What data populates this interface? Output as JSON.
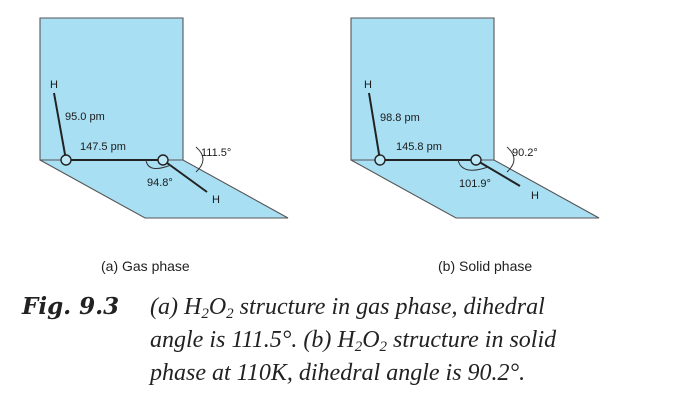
{
  "panels": [
    {
      "id": "gas",
      "h_top": "H",
      "h_bottom": "H",
      "oh_bond": "95.0 pm",
      "oo_bond": "147.5 pm",
      "dihedral": "111.5°",
      "bond_angle": "94.8°",
      "subcaption": "(a) Gas phase"
    },
    {
      "id": "solid",
      "h_top": "H",
      "h_bottom": "H",
      "oh_bond": "98.8 pm",
      "oo_bond": "145.8 pm",
      "dihedral": "90.2°",
      "bond_angle": "101.9°",
      "subcaption": "(b) Solid phase"
    }
  ],
  "caption": {
    "fig_number": "Fig. 9.3",
    "line1_a": "(a) H",
    "line1_sub1": "2",
    "line1_b": "O",
    "line1_sub2": "2",
    "line1_c": " structure in gas phase, dihedral",
    "line2_a": "angle is 111.5°. (b) H",
    "line2_sub1": "2",
    "line2_b": "O",
    "line2_sub2": "2",
    "line2_c": " structure in solid",
    "line3": "phase at 110K, dihedral angle is 90.2°."
  },
  "colors": {
    "plane": "#a9dff3",
    "atom": "#bfe8f7"
  }
}
